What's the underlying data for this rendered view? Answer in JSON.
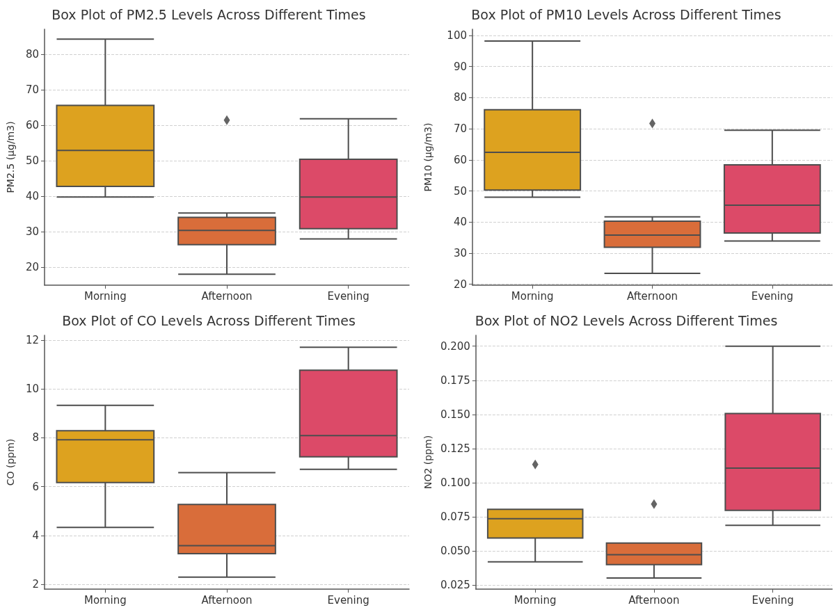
{
  "chart_data": [
    {
      "type": "box",
      "title": "Box Plot of PM2.5 Levels Across Different Times",
      "ylabel": "PM2.5 (µg/m3)",
      "categories": [
        "Morning",
        "Afternoon",
        "Evening"
      ],
      "colors": [
        "#dda21f",
        "#d96d3a",
        "#dc4a68"
      ],
      "ylim": [
        15,
        87
      ],
      "yticks": [
        20,
        30,
        40,
        50,
        60,
        70,
        80
      ],
      "grid": "y",
      "marker": "diamond",
      "boxes": [
        {
          "low": 39.8,
          "q1": 42.8,
          "median": 52.9,
          "q3": 65.6,
          "high": 84.2
        },
        {
          "low": 18.1,
          "q1": 26.4,
          "median": 30.4,
          "q3": 34.1,
          "high": 35.3,
          "outliers": [
            61.4
          ]
        },
        {
          "low": 28.0,
          "q1": 30.9,
          "median": 39.8,
          "q3": 50.4,
          "high": 61.8
        }
      ]
    },
    {
      "type": "box",
      "title": "Box Plot of PM10 Levels Across Different Times",
      "ylabel": "PM10 (µg/m3)",
      "categories": [
        "Morning",
        "Afternoon",
        "Evening"
      ],
      "colors": [
        "#dda21f",
        "#d96d3a",
        "#dc4a68"
      ],
      "ylim": [
        19.7,
        102
      ],
      "yticks": [
        20,
        30,
        40,
        50,
        60,
        70,
        80,
        90,
        100
      ],
      "grid": "y",
      "marker": "diamond",
      "boxes": [
        {
          "low": 48.0,
          "q1": 50.3,
          "median": 62.4,
          "q3": 76.1,
          "high": 98.2
        },
        {
          "low": 23.5,
          "q1": 31.9,
          "median": 35.8,
          "q3": 40.3,
          "high": 41.7,
          "outliers": [
            71.7
          ]
        },
        {
          "low": 33.9,
          "q1": 36.5,
          "median": 45.4,
          "q3": 58.4,
          "high": 69.5
        }
      ]
    },
    {
      "type": "box",
      "title": "Box Plot of CO Levels Across Different Times",
      "ylabel": "CO (ppm)",
      "categories": [
        "Morning",
        "Afternoon",
        "Evening"
      ],
      "colors": [
        "#dda21f",
        "#d96d3a",
        "#dc4a68"
      ],
      "ylim": [
        1.8,
        12.2
      ],
      "yticks": [
        2,
        4,
        6,
        8,
        10,
        12
      ],
      "grid": "y",
      "boxes": [
        {
          "low": 4.33,
          "q1": 6.17,
          "median": 7.92,
          "q3": 8.29,
          "high": 9.33
        },
        {
          "low": 2.29,
          "q1": 3.25,
          "median": 3.58,
          "q3": 5.27,
          "high": 6.57
        },
        {
          "low": 6.71,
          "q1": 7.22,
          "median": 8.09,
          "q3": 10.77,
          "high": 11.71
        }
      ]
    },
    {
      "type": "box",
      "title": "Box Plot of NO2 Levels Across Different Times",
      "ylabel": "NO2 (ppm)",
      "categories": [
        "Morning",
        "Afternoon",
        "Evening"
      ],
      "colors": [
        "#dda21f",
        "#d96d3a",
        "#dc4a68"
      ],
      "ylim": [
        0.022,
        0.208
      ],
      "yticks": [
        {
          "value": 0.025,
          "label": "0.025"
        },
        {
          "value": 0.05,
          "label": "0.050"
        },
        {
          "value": 0.075,
          "label": "0.075"
        },
        {
          "value": 0.1,
          "label": "0.100"
        },
        {
          "value": 0.125,
          "label": "0.125"
        },
        {
          "value": 0.15,
          "label": "0.150"
        },
        {
          "value": 0.175,
          "label": "0.175"
        },
        {
          "value": 0.2,
          "label": "0.200"
        }
      ],
      "grid": "y",
      "marker": "diamond",
      "boxes": [
        {
          "low": 0.042,
          "q1": 0.0595,
          "median": 0.0736,
          "q3": 0.0805,
          "high": 0.0805,
          "outliers": [
            0.1134
          ]
        },
        {
          "low": 0.0302,
          "q1": 0.04,
          "median": 0.0472,
          "q3": 0.0557,
          "high": 0.0557,
          "outliers": [
            0.0843
          ]
        },
        {
          "low": 0.0688,
          "q1": 0.0797,
          "median": 0.1107,
          "q3": 0.1507,
          "high": 0.2
        }
      ]
    }
  ]
}
